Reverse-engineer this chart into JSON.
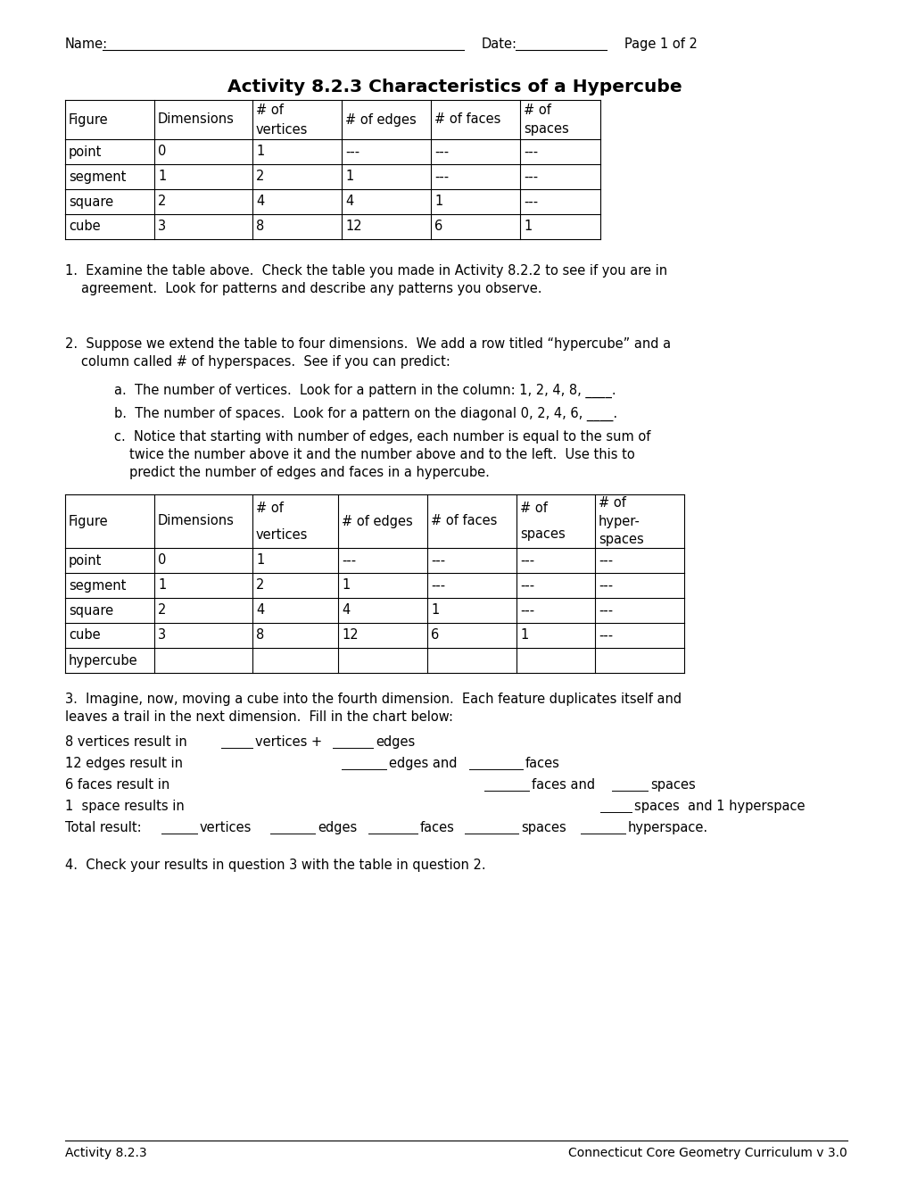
{
  "title": "Activity 8.2.3 Characteristics of a Hypercube",
  "footer_left": "Activity 8.2.3",
  "footer_right": "Connecticut Core Geometry Curriculum v 3.0",
  "table1_headers": [
    [
      "Figure"
    ],
    [
      "Dimensions"
    ],
    [
      "# of",
      "vertices"
    ],
    [
      "# of edges"
    ],
    [
      "# of faces"
    ],
    [
      "# of",
      "spaces"
    ]
  ],
  "table1_rows": [
    [
      "point",
      "0",
      "1",
      "---",
      "---",
      "---"
    ],
    [
      "segment",
      "1",
      "2",
      "1",
      "---",
      "---"
    ],
    [
      "square",
      "2",
      "4",
      "4",
      "1",
      "---"
    ],
    [
      "cube",
      "3",
      "8",
      "12",
      "6",
      "1"
    ]
  ],
  "table2_headers": [
    [
      "Figure"
    ],
    [
      "Dimensions"
    ],
    [
      "# of",
      "vertices"
    ],
    [
      "# of edges"
    ],
    [
      "# of faces"
    ],
    [
      "# of",
      "spaces"
    ],
    [
      "# of",
      "hyper-",
      "spaces"
    ]
  ],
  "table2_rows": [
    [
      "point",
      "0",
      "1",
      "---",
      "---",
      "---",
      "---"
    ],
    [
      "segment",
      "1",
      "2",
      "1",
      "---",
      "---",
      "---"
    ],
    [
      "square",
      "2",
      "4",
      "4",
      "1",
      "---",
      "---"
    ],
    [
      "cube",
      "3",
      "8",
      "12",
      "6",
      "1",
      "---"
    ],
    [
      "hypercube",
      "",
      "",
      "",
      "",
      "",
      ""
    ]
  ],
  "bg_color": "#ffffff",
  "text_color": "#000000"
}
